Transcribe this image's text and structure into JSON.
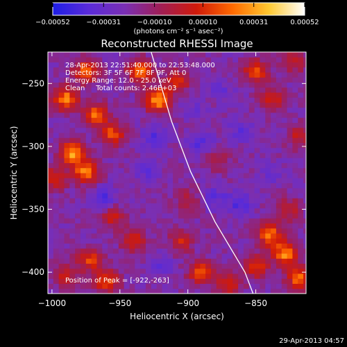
{
  "chart_data": {
    "type": "heatmap",
    "title": "Reconstructed RHESSI Image",
    "xlabel": "Heliocentric X (arcsec)",
    "ylabel": "Heliocentric Y (arcsec)",
    "xlim": [
      -1003,
      -813
    ],
    "ylim": [
      -417,
      -225
    ],
    "x_ticks": [
      -1000,
      -950,
      -900,
      -850
    ],
    "x_tick_labels": [
      "−1000",
      "−950",
      "−900",
      "−850"
    ],
    "y_ticks": [
      -250,
      -300,
      -350,
      -400
    ],
    "y_tick_labels": [
      "−250",
      "−300",
      "−350",
      "−400"
    ],
    "colorbar": {
      "range": [
        -0.00052,
        0.00052
      ],
      "ticks": [
        -0.00052,
        -0.00031,
        -0.0001,
        0.0001,
        0.00031,
        0.00052
      ],
      "tick_labels": [
        "−0.00052",
        "−0.00031",
        "−0.00010",
        "0.00010",
        "0.00031",
        "0.00052"
      ],
      "units_label": "(photons cm⁻² s⁻¹ asec⁻²)",
      "stops": [
        "#1e1ee6",
        "#5a2bd8",
        "#7a2fb4",
        "#a01e55",
        "#d01a0a",
        "#ff6a00",
        "#ffc830",
        "#ffffff"
      ]
    },
    "annotations": [
      "28-Apr-2013 22:51:40.000 to 22:53:48.000",
      "Detectors: 3F 5F 6F 7F 8F 9F, Att 0",
      "Energy Range: 12.0 - 25.0 keV",
      "Clean     Total counts: 2.46E+03"
    ],
    "peak_label": "Position of Peak = [-922,-263]",
    "peak": [
      -922,
      -263
    ],
    "limb_curve": [
      [
        -927,
        -225
      ],
      [
        -912,
        -280
      ],
      [
        -898,
        -320
      ],
      [
        -880,
        -360
      ],
      [
        -858,
        -400
      ],
      [
        -852,
        -417
      ]
    ],
    "blobs": [
      {
        "x": -990,
        "y": -262,
        "v": 0.00045
      },
      {
        "x": -975,
        "y": -240,
        "v": 0.0004
      },
      {
        "x": -968,
        "y": -275,
        "v": 0.00042
      },
      {
        "x": -955,
        "y": -290,
        "v": 0.00035
      },
      {
        "x": -985,
        "y": -305,
        "v": 0.0005
      },
      {
        "x": -975,
        "y": -320,
        "v": 0.00045
      },
      {
        "x": -998,
        "y": -325,
        "v": 0.0003
      },
      {
        "x": -935,
        "y": -240,
        "v": 0.00044
      },
      {
        "x": -922,
        "y": -263,
        "v": 0.00052
      },
      {
        "x": -908,
        "y": -248,
        "v": 0.0003
      },
      {
        "x": -850,
        "y": -240,
        "v": 0.00036
      },
      {
        "x": -838,
        "y": -262,
        "v": 0.00028
      },
      {
        "x": -822,
        "y": -232,
        "v": 0.00024
      },
      {
        "x": -818,
        "y": -292,
        "v": 0.00022
      },
      {
        "x": -955,
        "y": -357,
        "v": 0.00024
      },
      {
        "x": -900,
        "y": -343,
        "v": 0.00018
      },
      {
        "x": -878,
        "y": -310,
        "v": 0.00015
      },
      {
        "x": -940,
        "y": -375,
        "v": 0.00028
      },
      {
        "x": -905,
        "y": -375,
        "v": 0.00025
      },
      {
        "x": -972,
        "y": -390,
        "v": 0.00032
      },
      {
        "x": -960,
        "y": -407,
        "v": 0.00035
      },
      {
        "x": -990,
        "y": -402,
        "v": 0.00025
      },
      {
        "x": -890,
        "y": -400,
        "v": 0.00038
      },
      {
        "x": -870,
        "y": -410,
        "v": 0.00028
      },
      {
        "x": -840,
        "y": -370,
        "v": 0.00042
      },
      {
        "x": -828,
        "y": -385,
        "v": 0.00048
      },
      {
        "x": -818,
        "y": -405,
        "v": 0.0004
      },
      {
        "x": -850,
        "y": -395,
        "v": 0.00034
      },
      {
        "x": -826,
        "y": -350,
        "v": 0.00022
      },
      {
        "x": -930,
        "y": -320,
        "v": -0.00012
      },
      {
        "x": -925,
        "y": -293,
        "v": -0.00016
      },
      {
        "x": -890,
        "y": -296,
        "v": -0.00018
      },
      {
        "x": -875,
        "y": -255,
        "v": -0.0001
      },
      {
        "x": -860,
        "y": -287,
        "v": -0.00015
      },
      {
        "x": -962,
        "y": -340,
        "v": -0.00018
      },
      {
        "x": -880,
        "y": -340,
        "v": -0.00014
      },
      {
        "x": -862,
        "y": -345,
        "v": -0.0002
      },
      {
        "x": -838,
        "y": -322,
        "v": -0.00012
      },
      {
        "x": -920,
        "y": -395,
        "v": -0.00012
      },
      {
        "x": -895,
        "y": -270,
        "v": -8e-05
      }
    ]
  },
  "footer": {
    "timestamp": "29-Apr-2013 04:57"
  }
}
